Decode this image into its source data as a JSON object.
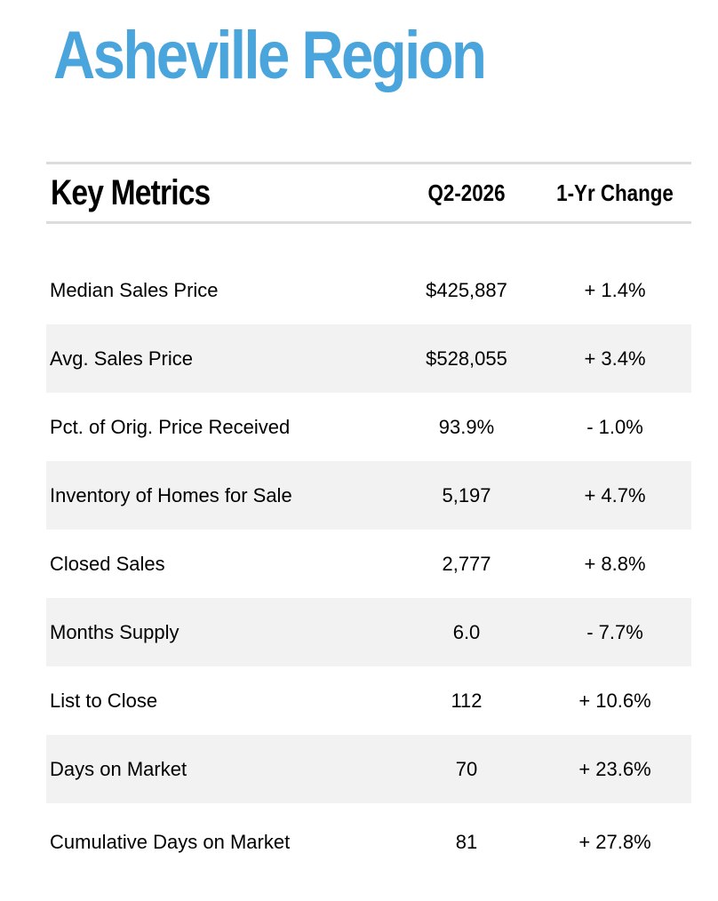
{
  "title": "Asheville Region",
  "table": {
    "headers": {
      "metric": "Key Metrics",
      "period": "Q2-2026",
      "change": "1-Yr Change"
    },
    "rows": [
      {
        "label": "Median Sales Price",
        "value": "$425,887",
        "change": "+ 1.4%"
      },
      {
        "label": "Avg. Sales Price",
        "value": "$528,055",
        "change": "+ 3.4%"
      },
      {
        "label": "Pct. of Orig. Price Received",
        "value": "93.9%",
        "change": "- 1.0%"
      },
      {
        "label": "Inventory of Homes for Sale",
        "value": "5,197",
        "change": "+ 4.7%"
      },
      {
        "label": "Closed Sales",
        "value": "2,777",
        "change": "+ 8.8%"
      },
      {
        "label": "Months Supply",
        "value": "6.0",
        "change": "- 7.7%"
      },
      {
        "label": "List to Close",
        "value": "112",
        "change": "+ 10.6%"
      },
      {
        "label": "Days on Market",
        "value": "70",
        "change": "+ 23.6%"
      },
      {
        "label": "Cumulative Days on Market",
        "value": "81",
        "change": "+ 27.8%"
      }
    ]
  },
  "colors": {
    "title": "#4aa5dc",
    "row_shade": "#f2f2f2",
    "rule": "#dcdcdc"
  }
}
